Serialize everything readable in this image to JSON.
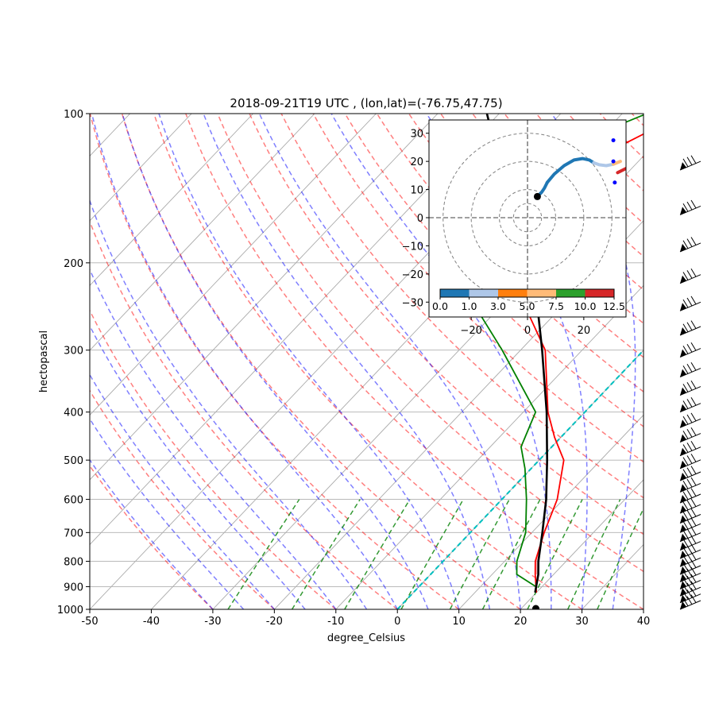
{
  "chart_data": [
    {
      "type": "skew-t",
      "title": "2018-09-21T19 UTC , (lon,lat)=(-76.75,47.75)",
      "xlabel": "degree_Celsius",
      "ylabel": "hectopascal",
      "xlim": [
        -50,
        40
      ],
      "ylim": [
        1000,
        100
      ],
      "y_scale": "log",
      "grid": true,
      "x_ticks": [
        "-50",
        "-40",
        "-30",
        "-20",
        "-10",
        "0",
        "10",
        "20",
        "30",
        "40"
      ],
      "y_ticks": [
        "1000",
        "900",
        "800",
        "700",
        "600",
        "500",
        "400",
        "300",
        "200",
        "100"
      ],
      "series": [
        {
          "color": "#ff0000",
          "points": [
            [
              20,
              925
            ],
            [
              17,
              850
            ],
            [
              15,
              800
            ],
            [
              12,
              700
            ],
            [
              9,
              600
            ],
            [
              4,
              500
            ],
            [
              -1,
              450
            ],
            [
              -6,
              400
            ],
            [
              -16,
              300
            ],
            [
              -25,
              250
            ],
            [
              -32,
              215
            ],
            [
              -38,
              190
            ],
            [
              -40,
              160
            ],
            [
              -37,
              130
            ],
            [
              -35,
              115
            ],
            [
              -30,
              100
            ]
          ]
        },
        {
          "color": "#008000",
          "points": [
            [
              19,
              900
            ],
            [
              14,
              850
            ],
            [
              12,
              800
            ],
            [
              9,
              700
            ],
            [
              4,
              600
            ],
            [
              -1,
              520
            ],
            [
              -5,
              470
            ],
            [
              -8,
              400
            ],
            [
              -23,
              300
            ],
            [
              -33,
              250
            ],
            [
              -41,
              200
            ],
            [
              -51,
              175
            ],
            [
              -55,
              160
            ],
            [
              -48,
              130
            ],
            [
              -41,
              110
            ],
            [
              -36,
              100
            ]
          ]
        },
        {
          "color": "#000000",
          "points": [
            [
              19.8,
              925
            ],
            [
              17.5,
              850
            ],
            [
              15.5,
              800
            ],
            [
              11.7,
              700
            ],
            [
              7.2,
              600
            ],
            [
              1.3,
              500
            ],
            [
              -6.2,
              400
            ],
            [
              -16.5,
              300
            ],
            [
              -31.5,
              200
            ],
            [
              -40,
              165
            ],
            [
              -51,
              130
            ],
            [
              -62,
              100
            ]
          ]
        }
      ],
      "cape_shading_color": "#e8797b",
      "surface_point": {
        "temperature": 22.5,
        "pressure": 1000
      },
      "background_lines": {
        "dry_adiabats_color": "#ff0000",
        "moist_adiabats_color": "#0000ff",
        "mixing_ratio_color": "#008000",
        "lcl_line_color": "#00bfbf",
        "isotherm_color": "#aaaaaa"
      },
      "wind_barbs": {
        "side": "right",
        "count": 30
      }
    },
    {
      "type": "hodograph",
      "xlim": [
        -35,
        35
      ],
      "ylim": [
        -35,
        35
      ],
      "x_ticks": [
        "−20",
        "0",
        "20"
      ],
      "y_ticks": [
        "30",
        "20",
        "10",
        "0",
        "−10",
        "−20",
        "−30"
      ],
      "rings": [
        10,
        20,
        30
      ],
      "series": [
        {
          "color": "#1f77b4",
          "range": [
            0,
            1
          ],
          "points": [
            [
              3.5,
              7.5
            ],
            [
              5,
              9
            ],
            [
              6,
              10.5
            ],
            [
              7,
              12.5
            ]
          ]
        },
        {
          "color": "#1f77b4",
          "range": [
            1,
            3
          ],
          "points": [
            [
              7,
              12.5
            ],
            [
              9.5,
              15.5
            ],
            [
              13,
              18.5
            ],
            [
              16.5,
              20.5
            ],
            [
              19.5,
              21
            ],
            [
              22,
              20.5
            ],
            [
              23.5,
              19.5
            ]
          ]
        },
        {
          "color": "#aec7e8",
          "range": [
            3,
            5
          ],
          "points": [
            [
              23.5,
              19.5
            ],
            [
              25.5,
              18.8
            ],
            [
              28,
              18.5
            ],
            [
              30.5,
              19
            ]
          ]
        },
        {
          "color": "#ffbb78",
          "range": [
            5,
            7.5
          ],
          "points": [
            [
              30.5,
              19
            ],
            [
              33,
              20
            ]
          ]
        },
        {
          "color": "#d62728",
          "range": [
            10,
            12.5
          ],
          "points": [
            [
              32,
              16
            ],
            [
              35,
              17.5
            ]
          ]
        }
      ],
      "markers": [
        {
          "u": 3.5,
          "v": 7.5,
          "color": "#000000"
        },
        {
          "u": 30.5,
          "v": 27.5,
          "color": "#0000ff"
        },
        {
          "u": 30.5,
          "v": 20,
          "color": "#0000ff"
        },
        {
          "u": 31,
          "v": 12.5,
          "color": "#0000ff"
        }
      ],
      "colorbar": {
        "ticks": [
          "0.0",
          "1.0",
          "3.0",
          "5.0",
          "7.5",
          "10.0",
          "12.5"
        ],
        "colors": [
          "#1f77b4",
          "#aec7e8",
          "#ff7f0e",
          "#ffbb78",
          "#2ca02c",
          "#d62728"
        ]
      }
    }
  ]
}
